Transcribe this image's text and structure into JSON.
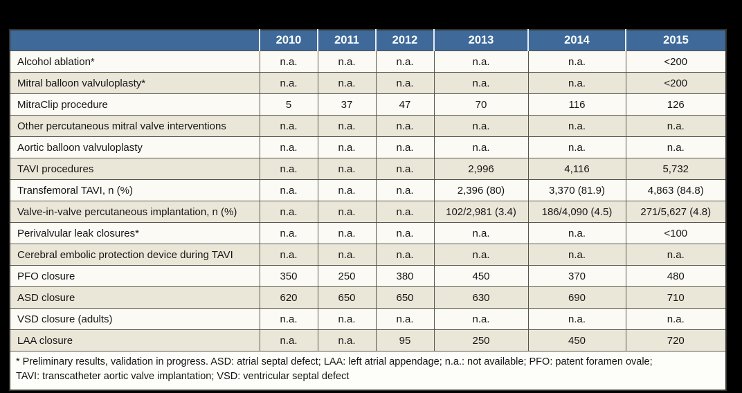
{
  "table": {
    "columns": [
      "",
      "2010",
      "2011",
      "2012",
      "2013",
      "2014",
      "2015"
    ],
    "rows": [
      {
        "label": "Alcohol ablation*",
        "values": [
          "n.a.",
          "n.a.",
          "n.a.",
          "n.a.",
          "n.a.",
          "<200"
        ]
      },
      {
        "label": "Mitral balloon valvuloplasty*",
        "values": [
          "n.a.",
          "n.a.",
          "n.a.",
          "n.a.",
          "n.a.",
          "<200"
        ]
      },
      {
        "label": "MitraClip procedure",
        "values": [
          "5",
          "37",
          "47",
          "70",
          "116",
          "126"
        ]
      },
      {
        "label": "Other percutaneous mitral valve interventions",
        "values": [
          "n.a.",
          "n.a.",
          "n.a.",
          "n.a.",
          "n.a.",
          "n.a."
        ]
      },
      {
        "label": "Aortic balloon valvuloplasty",
        "values": [
          "n.a.",
          "n.a.",
          "n.a.",
          "n.a.",
          "n.a.",
          "n.a."
        ]
      },
      {
        "label": "TAVI procedures",
        "values": [
          "n.a.",
          "n.a.",
          "n.a.",
          "2,996",
          "4,116",
          "5,732"
        ]
      },
      {
        "label": "Transfemoral TAVI, n (%)",
        "values": [
          "n.a.",
          "n.a.",
          "n.a.",
          "2,396 (80)",
          "3,370 (81.9)",
          "4,863 (84.8)"
        ]
      },
      {
        "label": "Valve-in-valve percutaneous implantation, n (%)",
        "values": [
          "n.a.",
          "n.a.",
          "n.a.",
          "102/2,981 (3.4)",
          "186/4,090 (4.5)",
          "271/5,627 (4.8)"
        ]
      },
      {
        "label": "Perivalvular leak closures*",
        "values": [
          "n.a.",
          "n.a.",
          "n.a.",
          "n.a.",
          "n.a.",
          "<100"
        ]
      },
      {
        "label": "Cerebral embolic protection device during TAVI",
        "values": [
          "n.a.",
          "n.a.",
          "n.a.",
          "n.a.",
          "n.a.",
          "n.a."
        ]
      },
      {
        "label": "PFO closure",
        "values": [
          "350",
          "250",
          "380",
          "450",
          "370",
          "480"
        ]
      },
      {
        "label": "ASD closure",
        "values": [
          "620",
          "650",
          "650",
          "630",
          "690",
          "710"
        ]
      },
      {
        "label": "VSD closure (adults)",
        "values": [
          "n.a.",
          "n.a.",
          "n.a.",
          "n.a.",
          "n.a.",
          "n.a."
        ]
      },
      {
        "label": "LAA closure",
        "values": [
          "n.a.",
          "n.a.",
          "95",
          "250",
          "450",
          "720"
        ]
      }
    ],
    "footnote_lines": [
      "* Preliminary results, validation in progress. ASD: atrial septal defect; LAA: left atrial appendage; n.a.: not available; PFO: patent foramen ovale;",
      "TAVI: transcatheter aortic valve implantation; VSD: ventricular septal defect"
    ]
  },
  "colors": {
    "header_bg": "#3e6999",
    "header_text": "#ffffff",
    "row_light": "#fbfaf5",
    "row_beige": "#ebe7d8",
    "footnote_bg": "#fdfdfa",
    "grid_line": "#56544b",
    "canvas_bg": "#000000"
  }
}
